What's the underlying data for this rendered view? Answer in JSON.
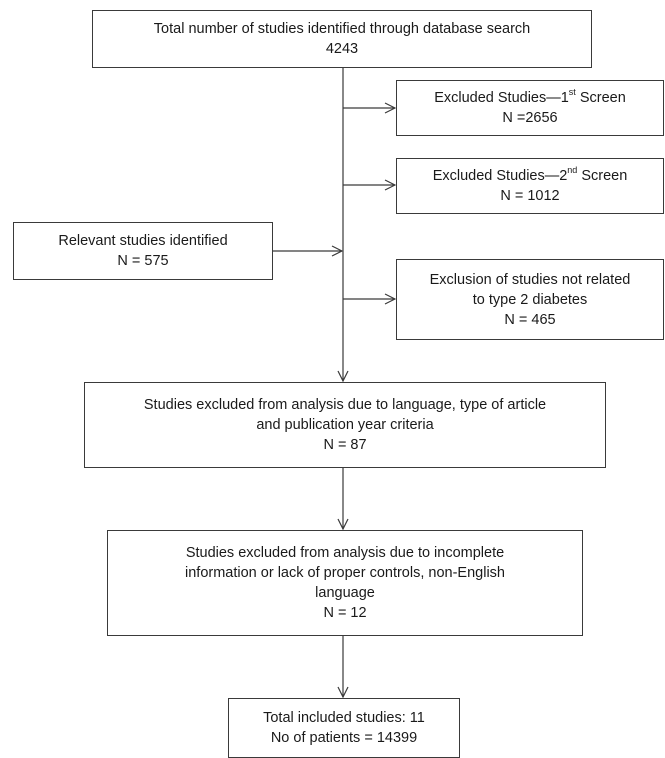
{
  "nodes": {
    "total_identified": {
      "line1": "Total number of studies identified through database search",
      "line2": "4243"
    },
    "excluded_first": {
      "label_pre": "Excluded Studies—1",
      "label_sup": "st",
      "label_post": " Screen",
      "count": "N =2656"
    },
    "excluded_second": {
      "label_pre": "Excluded Studies—2",
      "label_sup": "nd",
      "label_post": " Screen",
      "count": "N = 1012"
    },
    "relevant_identified": {
      "line1": "Relevant studies identified",
      "count": "N = 575"
    },
    "excluded_not_t2d": {
      "line1": "Exclusion of studies not related",
      "line2": "to type 2 diabetes",
      "count": "N = 465"
    },
    "excluded_language": {
      "line1": "Studies excluded from analysis due to language, type of article",
      "line2": "and publication year criteria",
      "count": "N = 87"
    },
    "excluded_incomplete": {
      "line1": "Studies excluded from analysis due to incomplete",
      "line2": "information or lack of proper controls, non-English",
      "line3": "language",
      "count": "N = 12"
    },
    "total_included": {
      "line1": "Total included studies: 11",
      "line2": "No of patients = 14399"
    }
  },
  "colors": {
    "stroke": "#3a3a3a",
    "text": "#1a1a1a",
    "background": "#ffffff"
  }
}
